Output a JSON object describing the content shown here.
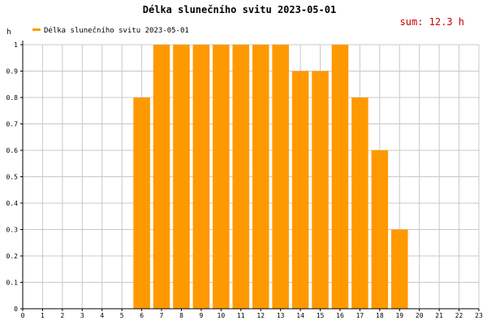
{
  "chart_data": {
    "type": "bar",
    "title": "Délka slunečního svitu 2023-05-01",
    "ylabel": "h",
    "xlabel": "",
    "sum_label": "sum: 12.3 h",
    "legend": "Délka slunečního svitu 2023-05-01",
    "legend_position": "top-left",
    "grid": true,
    "xlim": [
      0,
      23
    ],
    "ylim": [
      0,
      1
    ],
    "x_ticks": [
      "0",
      "1",
      "2",
      "3",
      "4",
      "5",
      "6",
      "7",
      "8",
      "9",
      "10",
      "11",
      "12",
      "13",
      "14",
      "15",
      "16",
      "17",
      "18",
      "19",
      "20",
      "21",
      "22",
      "23"
    ],
    "y_ticks": [
      "0",
      "0.1",
      "0.2",
      "0.3",
      "0.4",
      "0.5",
      "0.6",
      "0.7",
      "0.8",
      "0.9",
      "1"
    ],
    "categories": [
      "6",
      "7",
      "8",
      "9",
      "10",
      "11",
      "12",
      "13",
      "14",
      "15",
      "16",
      "17",
      "18",
      "19"
    ],
    "values": [
      0.8,
      1,
      1,
      1,
      1,
      1,
      1,
      1,
      0.9,
      0.9,
      1,
      0.8,
      0.6,
      0.3
    ],
    "colors": {
      "bar": "#ff9900",
      "title": "#000000",
      "sum": "#cc0000",
      "grid": "#c8c8c8",
      "axis": "#000000"
    }
  }
}
